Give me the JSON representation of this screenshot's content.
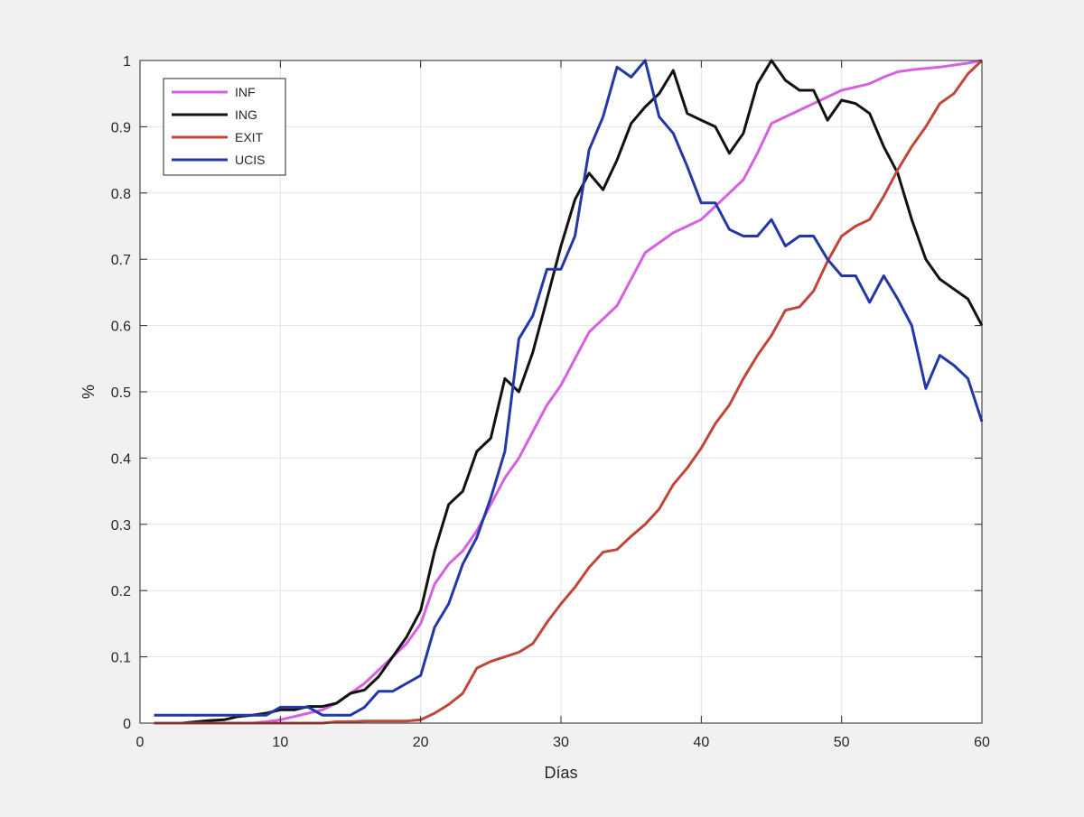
{
  "chart_data": {
    "type": "line",
    "title": "",
    "xlabel": "Días",
    "ylabel": "%",
    "xlim": [
      0,
      60
    ],
    "ylim": [
      0,
      1
    ],
    "xticks": [
      "0",
      "10",
      "20",
      "30",
      "40",
      "50",
      "60"
    ],
    "yticks": [
      "0",
      "0.1",
      "0.2",
      "0.3",
      "0.4",
      "0.5",
      "0.6",
      "0.7",
      "0.8",
      "0.9",
      "1"
    ],
    "grid": true,
    "legend_position": "top-left",
    "x": [
      1,
      2,
      3,
      4,
      5,
      6,
      7,
      8,
      9,
      10,
      11,
      12,
      13,
      14,
      15,
      16,
      17,
      18,
      19,
      20,
      21,
      22,
      23,
      24,
      25,
      26,
      27,
      28,
      29,
      30,
      31,
      32,
      33,
      34,
      35,
      36,
      37,
      38,
      39,
      40,
      41,
      42,
      43,
      44,
      45,
      46,
      47,
      48,
      49,
      50,
      51,
      52,
      53,
      54,
      55,
      56,
      57,
      58,
      59,
      60
    ],
    "series": [
      {
        "name": "INF",
        "color": "#d660e0",
        "values": [
          0,
          0,
          0,
          0,
          0,
          0,
          0,
          0,
          0.002,
          0.005,
          0.01,
          0.015,
          0.02,
          0.03,
          0.045,
          0.06,
          0.08,
          0.1,
          0.12,
          0.15,
          0.21,
          0.24,
          0.26,
          0.29,
          0.33,
          0.37,
          0.4,
          0.44,
          0.48,
          0.51,
          0.55,
          0.59,
          0.61,
          0.63,
          0.67,
          0.71,
          0.725,
          0.74,
          0.75,
          0.76,
          0.78,
          0.8,
          0.82,
          0.86,
          0.905,
          0.915,
          0.925,
          0.935,
          0.945,
          0.955,
          0.96,
          0.965,
          0.975,
          0.983,
          0.986,
          0.988,
          0.99,
          0.993,
          0.996,
          1.0
        ]
      },
      {
        "name": "ING",
        "color": "#111111",
        "values": [
          0,
          0,
          0,
          0.002,
          0.004,
          0.005,
          0.01,
          0.012,
          0.015,
          0.02,
          0.02,
          0.025,
          0.025,
          0.03,
          0.045,
          0.05,
          0.07,
          0.1,
          0.13,
          0.17,
          0.26,
          0.33,
          0.35,
          0.41,
          0.43,
          0.52,
          0.5,
          0.56,
          0.64,
          0.72,
          0.79,
          0.83,
          0.805,
          0.85,
          0.905,
          0.93,
          0.95,
          0.985,
          0.92,
          0.91,
          0.9,
          0.86,
          0.89,
          0.965,
          1.0,
          0.97,
          0.955,
          0.955,
          0.91,
          0.94,
          0.935,
          0.92,
          0.87,
          0.83,
          0.76,
          0.7,
          0.67,
          0.655,
          0.64,
          0.6
        ]
      },
      {
        "name": "EXIT",
        "color": "#c0463a",
        "values": [
          0,
          0,
          0,
          0,
          0,
          0,
          0,
          0,
          0,
          0,
          0,
          0,
          0,
          0.002,
          0.002,
          0.003,
          0.003,
          0.003,
          0.003,
          0.005,
          0.015,
          0.028,
          0.045,
          0.083,
          0.093,
          0.1,
          0.107,
          0.12,
          0.152,
          0.18,
          0.205,
          0.235,
          0.258,
          0.262,
          0.282,
          0.3,
          0.323,
          0.36,
          0.385,
          0.415,
          0.452,
          0.48,
          0.52,
          0.555,
          0.585,
          0.623,
          0.628,
          0.652,
          0.697,
          0.735,
          0.75,
          0.76,
          0.795,
          0.835,
          0.87,
          0.9,
          0.935,
          0.95,
          0.98,
          1.0
        ]
      },
      {
        "name": "UCIS",
        "color": "#2437a8",
        "values": [
          0.012,
          0.012,
          0.012,
          0.012,
          0.012,
          0.012,
          0.012,
          0.012,
          0.012,
          0.024,
          0.024,
          0.024,
          0.012,
          0.012,
          0.012,
          0.024,
          0.048,
          0.048,
          0.06,
          0.072,
          0.145,
          0.18,
          0.24,
          0.28,
          0.34,
          0.41,
          0.58,
          0.615,
          0.685,
          0.685,
          0.735,
          0.865,
          0.915,
          0.99,
          0.975,
          1.0,
          0.915,
          0.89,
          0.84,
          0.785,
          0.785,
          0.745,
          0.735,
          0.735,
          0.76,
          0.72,
          0.735,
          0.735,
          0.7,
          0.675,
          0.675,
          0.635,
          0.675,
          0.64,
          0.6,
          0.505,
          0.555,
          0.54,
          0.52,
          0.455
        ]
      }
    ]
  }
}
